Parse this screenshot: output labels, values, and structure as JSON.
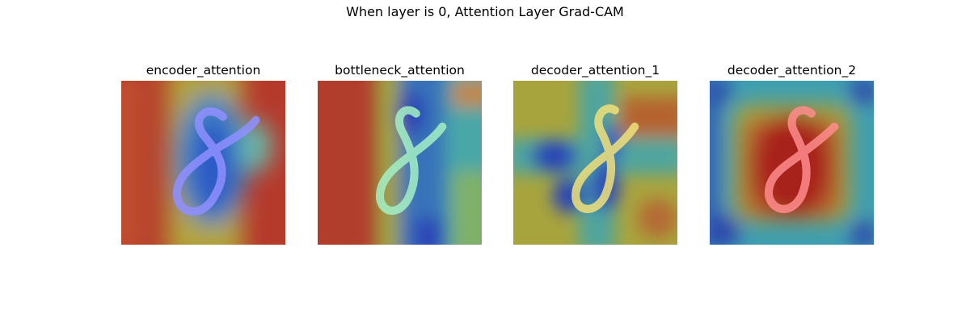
{
  "figure": {
    "title": "When layer is 0, Attention Layer Grad-CAM"
  },
  "chart_data": [
    {
      "type": "heatmap",
      "title": "encoder_attention",
      "colormap": "jet",
      "overlay": "handwritten digit 8",
      "axes": "off",
      "grid": false
    },
    {
      "type": "heatmap",
      "title": "bottleneck_attention",
      "colormap": "jet",
      "overlay": "handwritten digit 8",
      "axes": "off",
      "grid": false
    },
    {
      "type": "heatmap",
      "title": "decoder_attention_1",
      "colormap": "jet",
      "overlay": "handwritten digit 8",
      "axes": "off",
      "grid": false
    },
    {
      "type": "heatmap",
      "title": "decoder_attention_2",
      "colormap": "jet",
      "overlay": "handwritten digit 8",
      "axes": "off",
      "grid": false
    }
  ]
}
